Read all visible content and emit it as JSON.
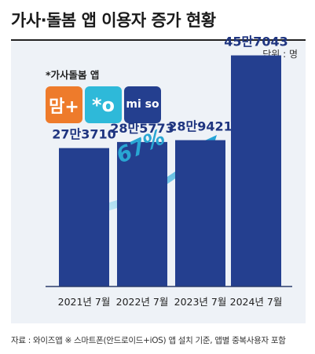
{
  "title": "가사·돌봄 앱 이용자 증가 현황",
  "unit_label": "단위 : 명",
  "app_label": "*가사돌봄 앱",
  "logos": [
    {
      "icon": "daeriju-logo-icon",
      "text": "맘+",
      "color": "#ee7b2b"
    },
    {
      "icon": "cleaning-app-logo-icon",
      "text": "*o",
      "color": "#2eb9d9"
    },
    {
      "icon": "miso-logo-icon",
      "text": "mi so",
      "color": "#243f8f"
    }
  ],
  "growth_label": "67%",
  "source": "자료 : 와이즈앱 ※ 스마트폰(안드로이드+iOS) 앱 설치 기준, 앱별 중복사용자 포함",
  "chart_data": {
    "type": "bar",
    "categories": [
      "2021년 7월",
      "2022년 7월",
      "2023년 7월",
      "2024년 7월"
    ],
    "values": [
      273710,
      285773,
      289421,
      457043
    ],
    "data_labels": [
      "27만3710",
      "28만5773",
      "28만9421",
      "45만7043"
    ],
    "bar_color": "#243f8f",
    "ylim": [
      0,
      520000
    ],
    "grid": false
  }
}
